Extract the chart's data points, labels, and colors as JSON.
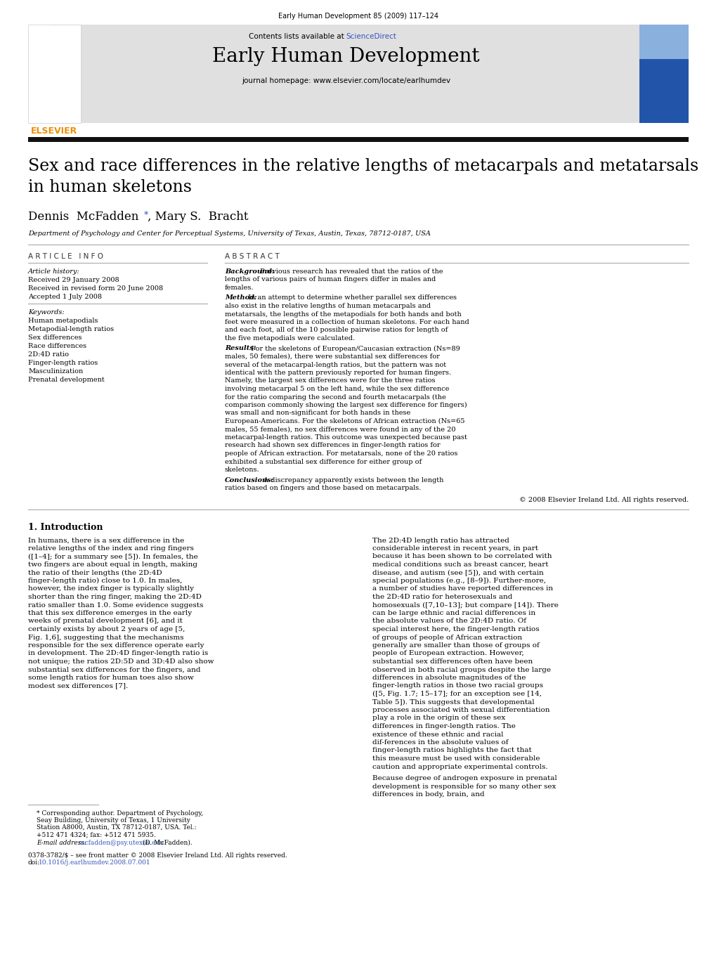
{
  "page_width": 10.2,
  "page_height": 13.59,
  "dpi": 100,
  "bg_color": "#ffffff",
  "journal_header_line": "Early Human Development 85 (2009) 117–124",
  "header_bg": "#e0e0e0",
  "contents_line": "Contents lists available at ",
  "sciencedirect_text": "ScienceDirect",
  "sciencedirect_color": "#3355bb",
  "journal_title": "Early Human Development",
  "journal_homepage": "journal homepage: www.elsevier.com/locate/earlhumdev",
  "elsevier_color": "#e8900a",
  "thick_bar_color": "#111111",
  "article_title_line1": "Sex and race differences in the relative lengths of metacarpals and metatarsals",
  "article_title_line2": "in human skeletons",
  "authors_line": "Dennis  McFadden",
  "authors_star": "*",
  "authors_line2": ", Mary S.  Bracht",
  "affiliation": "Department of Psychology and Center for Perceptual Systems, University of Texas, Austin, Texas, 78712-0187, USA",
  "article_info_header": "A R T I C L E   I N F O",
  "abstract_header": "A B S T R A C T",
  "article_history_label": "Article history:",
  "received1": "Received 29 January 2008",
  "received2": "Received in revised form 20 June 2008",
  "accepted": "Accepted 1 July 2008",
  "keywords_label": "Keywords:",
  "keywords": [
    "Human metapodials",
    "Metapodial-length ratios",
    "Sex differences",
    "Race differences",
    "2D:4D ratio",
    "Finger-length ratios",
    "Masculinization",
    "Prenatal development"
  ],
  "background_label": "Background:",
  "background_text": " Previous research has revealed that the ratios of the lengths of various pairs of human fingers differ in males and females.",
  "method_label": "Method:",
  "method_text": " In an attempt to determine whether parallel sex differences also exist in the relative lengths of human metacarpals and metatarsals, the lengths of the metapodials for both hands and both feet were measured in a collection of human skeletons. For each hand and each foot, all of the 10 possible pairwise ratios for length of the five metapodials were calculated.",
  "results_label": "Results:",
  "results_text": " For the skeletons of European/Caucasian extraction (Ns​=​89 males, 50 females), there were substantial sex differences for several of the metacarpal-length ratios, but the pattern was not identical with the pattern previously reported for human fingers. Namely, the largest sex differences were for the three ratios involving metacarpal 5 on the left hand, while the sex difference for the ratio comparing the second and fourth metacarpals (the comparison commonly showing the largest sex difference for fingers) was small and non-significant for both hands in these European-Americans. For the skeletons of African extraction (Ns​=​65 males, 55 females), no sex differences were found in any of the 20 metacarpal-length ratios. This outcome was unexpected because past research had shown sex differences in finger-length ratios for people of African extraction. For metatarsals, none of the 20 ratios exhibited a substantial sex difference for either group of skeletons.",
  "conclusions_label": "Conclusions:",
  "conclusions_text": " A discrepancy apparently exists between the length ratios based on fingers and those based on metacarpals.",
  "copyright_text": "© 2008 Elsevier Ireland Ltd. All rights reserved.",
  "intro_header": "1. Introduction",
  "intro_col1_indent": "    In humans, there is a sex difference in the relative lengths of the index and ring fingers ([1–4]; for a summary see [5]). In females, the two fingers are about equal in length, making the ratio of their lengths (the 2D:4D finger-length ratio) close to 1.0. In males, however, the index finger is typically slightly shorter than the ring finger, making the 2D:4D ratio smaller than 1.0. Some evidence suggests that this sex difference emerges in the early weeks of prenatal development [6], and it certainly exists by about 2 years of age [5, Fig. 1,6], suggesting that the mechanisms responsible for the sex difference operate early in development. The 2D:4D finger-length ratio is not unique; the ratios 2D:5D and 3D:4D also show substantial sex differences for the fingers, and some length ratios for human toes also show modest sex differences [7].",
  "intro_col2_indent": "    The 2D:4D length ratio has attracted considerable interest in recent years, in part because it has been shown to be correlated with medical conditions such as breast cancer, heart disease, and autism (see [5]), and with certain special populations (e.g., [8–9]). Further-more, a number of studies have reported differences in the 2D:4D ratio for heterosexuals and homosexuals ([7,10–13]; but compare [14]). There can be large ethnic and racial differences in the absolute values of the 2D:4D ratio. Of special interest here, the finger-length ratios of groups of people of African extraction generally are smaller than those of groups of people of European extraction. However, substantial sex differences often have been observed in both racial groups despite the large differences in absolute magnitudes of the finger-length ratios in those two racial groups ([5, Fig. 1.7; 15–17]; for an exception see [14, Table 5]). This suggests that developmental processes associated with sexual differentiation play a role in the origin of these sex differences in finger-length ratios. The existence of these ethnic and racial dif-ferences in the absolute values of finger-length ratios highlights the fact that this measure must be used with considerable caution and appropriate experimental controls.",
  "intro_col2_para2": "    Because degree of androgen exposure in prenatal development is responsible for so many other sex differences in body, brain, and",
  "footnote_line": "* Corresponding author. Department of Psychology, Seay Building, University of Texas, 1 University Station A8000, Austin, TX 78712-0187, USA. Tel.: +512 471 4324; fax: +512 471 5935.",
  "footnote_email_label": "E-mail address:",
  "footnote_email": " mcfadden@psy.utexas.edu",
  "footnote_email_color": "#3355bb",
  "footnote_email_suffix": " (D. McFadden).",
  "footer_line1": "0378-3782/$ – see front matter © 2008 Elsevier Ireland Ltd. All rights reserved.",
  "footer_line2": "doi:10.1016/j.earlhumdev.2008.07.001",
  "footer_doi_color": "#3355bb",
  "line_color": "#aaaaaa",
  "text_color": "#000000"
}
